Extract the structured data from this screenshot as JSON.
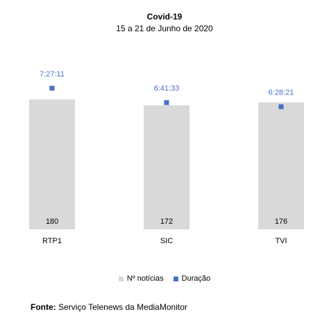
{
  "chart_data": {
    "type": "bar",
    "title": "Covid-19",
    "subtitle": "15 a 21 de Junho de 2020",
    "categories": [
      "RTP1",
      "SIC",
      "TVI"
    ],
    "series": [
      {
        "name": "Nº notícias",
        "kind": "bar",
        "color": "#d9d9d9",
        "values": [
          180,
          172,
          176
        ],
        "labels": [
          "180",
          "172",
          "176"
        ]
      },
      {
        "name": "Duração",
        "kind": "marker",
        "color": "#4472c4",
        "values_seconds": [
          26831,
          24093,
          23301
        ],
        "labels": [
          "7:27:11",
          "6:41:33",
          "6:28:21"
        ]
      }
    ],
    "ylim_bars": [
      0,
      210
    ],
    "ylim_duration_seconds": [
      0,
      28800
    ],
    "grid": false,
    "legend_position": "bottom"
  },
  "footer": {
    "label": "Fonte:",
    "text": "Serviço Telenews da MediaMonitor"
  }
}
